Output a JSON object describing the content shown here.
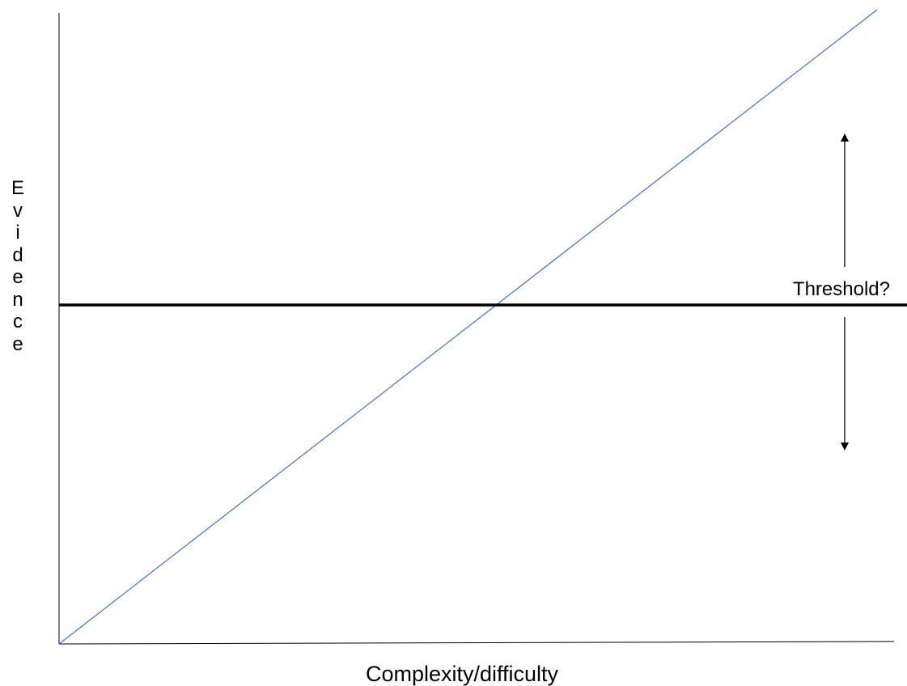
{
  "labels": {
    "x_axis": "Complexity/difficulty",
    "y_axis": "Evidence",
    "threshold": "Threshold?"
  },
  "colors": {
    "axis": "#000000",
    "threshold_line": "#000000",
    "diagonal_line": "#4472C4",
    "arrow": "#000000",
    "background": "#ffffff"
  }
}
